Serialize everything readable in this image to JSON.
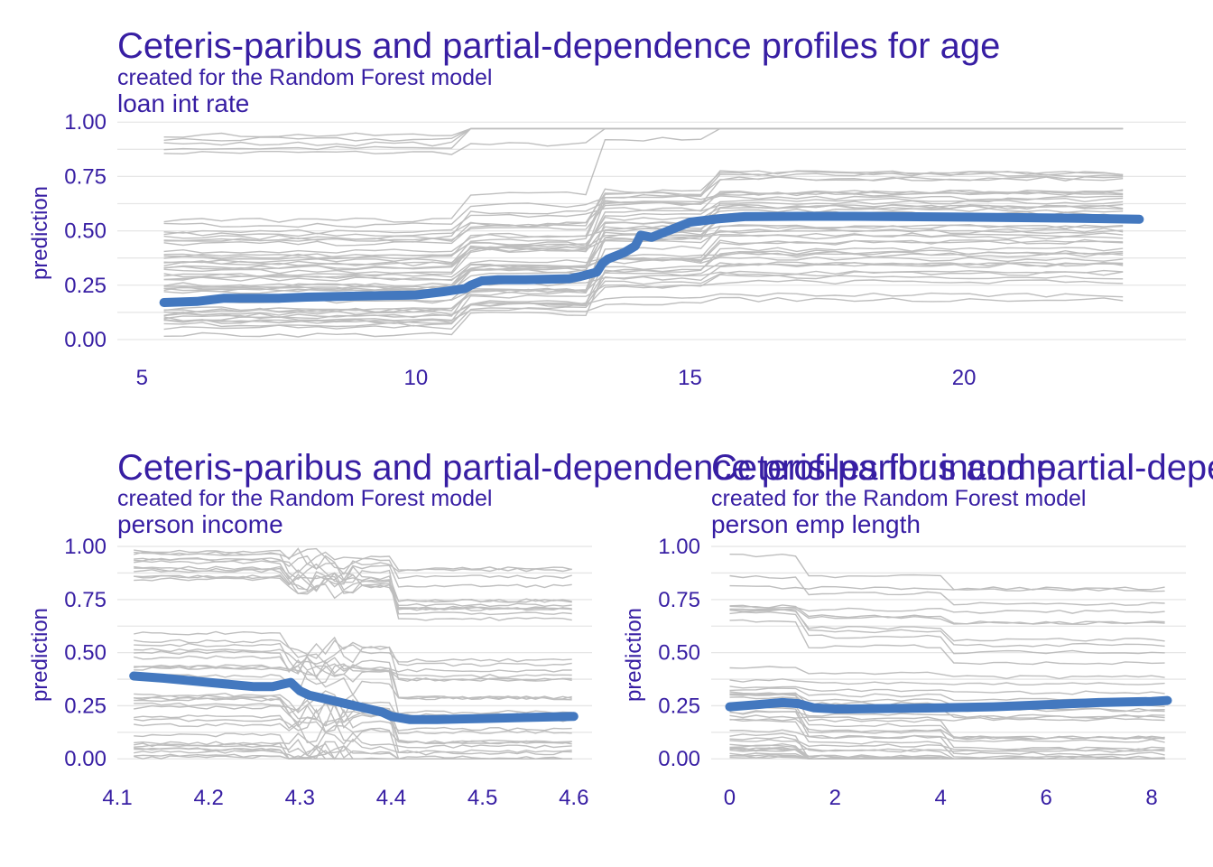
{
  "chart_data": [
    {
      "type": "line",
      "title": "Ceteris-paribus and partial-dependence profiles for age",
      "subtitle": "created for the Random Forest model",
      "strip": "loan  int  rate",
      "ylabel": "prediction",
      "xlabel": "",
      "xlim": [
        4.55,
        24.05
      ],
      "ylim": [
        -0.05,
        1.03
      ],
      "x_ticks": [
        5,
        10,
        15,
        20
      ],
      "x_tick_labels": [
        "5",
        "10",
        "15",
        "20"
      ],
      "y_ticks": [
        0,
        0.25,
        0.5,
        0.75,
        1
      ],
      "y_tick_labels": [
        "0.00",
        "0.25",
        "0.50",
        "0.75",
        "1.00"
      ],
      "grid": true,
      "series": [
        {
          "role": "partial-dependence",
          "color": "#4378bf",
          "x": [
            5.4,
            6.0,
            6.5,
            7.5,
            8.0,
            9.0,
            10.0,
            10.5,
            10.9,
            11.0,
            11.2,
            11.5,
            12.0,
            12.8,
            13.0,
            13.3,
            13.4,
            13.5,
            13.8,
            14.0,
            14.1,
            14.3,
            14.5,
            14.8,
            15.0,
            15.5,
            16.0,
            17.0,
            18.0,
            20.0,
            22.0,
            23.2
          ],
          "y": [
            0.17,
            0.175,
            0.19,
            0.19,
            0.195,
            0.2,
            0.205,
            0.22,
            0.235,
            0.25,
            0.27,
            0.275,
            0.275,
            0.28,
            0.29,
            0.31,
            0.35,
            0.37,
            0.4,
            0.43,
            0.48,
            0.47,
            0.49,
            0.52,
            0.54,
            0.555,
            0.565,
            0.567,
            0.567,
            0.563,
            0.558,
            0.553
          ]
        }
      ]
    },
    {
      "type": "line",
      "title": "Ceteris-paribus and partial-dependence profiles for income",
      "subtitle": "created for the Random Forest model",
      "strip": "person  income",
      "ylabel": "prediction",
      "xlabel": "",
      "xlim": [
        4.1,
        4.62
      ],
      "ylim": [
        -0.05,
        1.03
      ],
      "x_ticks": [
        4.1,
        4.2,
        4.3,
        4.4,
        4.5,
        4.6
      ],
      "x_tick_labels": [
        "4.1",
        "4.2",
        "4.3",
        "4.4",
        "4.5",
        "4.6"
      ],
      "y_ticks": [
        0,
        0.25,
        0.5,
        0.75,
        1
      ],
      "y_tick_labels": [
        "0.00",
        "0.25",
        "0.50",
        "0.75",
        "1.00"
      ],
      "grid": true,
      "series": [
        {
          "role": "partial-dependence",
          "color": "#4378bf",
          "x": [
            4.118,
            4.15,
            4.2,
            4.25,
            4.27,
            4.28,
            4.29,
            4.3,
            4.31,
            4.32,
            4.33,
            4.34,
            4.35,
            4.36,
            4.37,
            4.38,
            4.39,
            4.4,
            4.42,
            4.45,
            4.5,
            4.55,
            4.6
          ],
          "y": [
            0.39,
            0.38,
            0.36,
            0.34,
            0.34,
            0.35,
            0.36,
            0.32,
            0.3,
            0.29,
            0.28,
            0.27,
            0.26,
            0.25,
            0.24,
            0.23,
            0.22,
            0.2,
            0.185,
            0.185,
            0.19,
            0.195,
            0.2
          ]
        }
      ]
    },
    {
      "type": "line",
      "title": "Ceteris-paribus and partial-dependence profiles for income",
      "subtitle": "created for the Random Forest model",
      "strip": "person  emp  length",
      "ylabel": "prediction",
      "xlabel": "",
      "xlim": [
        -0.35,
        8.65
      ],
      "ylim": [
        -0.05,
        1.03
      ],
      "x_ticks": [
        0,
        2,
        4,
        6,
        8
      ],
      "x_tick_labels": [
        "0",
        "2",
        "4",
        "6",
        "8"
      ],
      "y_ticks": [
        0,
        0.25,
        0.5,
        0.75,
        1
      ],
      "y_tick_labels": [
        "0.00",
        "0.25",
        "0.50",
        "0.75",
        "1.00"
      ],
      "grid": true,
      "series": [
        {
          "role": "partial-dependence",
          "color": "#4378bf",
          "x": [
            0,
            0.5,
            1.0,
            1.3,
            1.6,
            2.0,
            2.3,
            3.0,
            4.0,
            5.0,
            6.0,
            7.0,
            8.0,
            8.3
          ],
          "y": [
            0.245,
            0.255,
            0.265,
            0.26,
            0.24,
            0.235,
            0.235,
            0.237,
            0.24,
            0.245,
            0.255,
            0.265,
            0.27,
            0.275
          ]
        }
      ]
    }
  ],
  "ice_color": "#bebebe",
  "accent_color": "#371ea3"
}
